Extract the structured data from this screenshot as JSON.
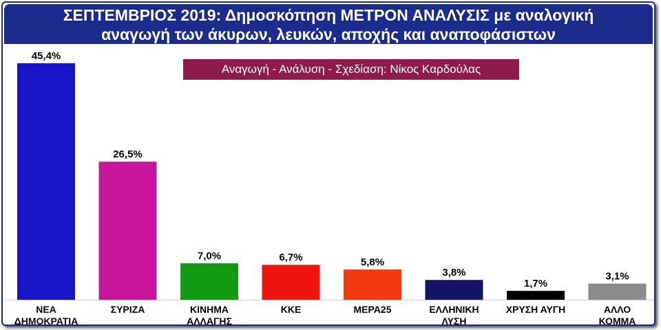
{
  "title_line1": "ΣΕΠΤΕΜΒΡΙΟΣ 2019: Δημοσκόπηση ΜΕΤΡΟΝ ΑΝΑΛΥΣΙΣ με αναλογική",
  "title_line2": "αναγωγή των άκυρων, λευκών, αποχής και αναποφάσιστων",
  "credit": "Αναγωγή - Ανάλυση - Σχεδίαση: Νίκος Καρδούλας",
  "chart_data": {
    "type": "bar",
    "categories": [
      [
        "ΝΕΑ",
        "ΔΗΜΟΚΡΑΤΙΑ"
      ],
      [
        "ΣΥΡΙΖΑ"
      ],
      [
        "ΚΙΝΗΜΑ",
        "ΑΛΛΑΓΗΣ"
      ],
      [
        "ΚΚΕ"
      ],
      [
        "ΜΕΡΑ25"
      ],
      [
        "ΕΛΛΗΝΙΚΗ",
        "ΛΥΣΗ"
      ],
      [
        "ΧΡΥΣΗ ΑΥΓΗ"
      ],
      [
        "ΑΛΛΟ",
        "ΚΟΜΜΑ"
      ]
    ],
    "values": [
      45.4,
      26.5,
      7.0,
      6.7,
      5.8,
      3.8,
      1.7,
      3.1
    ],
    "value_labels": [
      "45,4%",
      "26,5%",
      "7,0%",
      "6,7%",
      "5,8%",
      "3,8%",
      "1,7%",
      "3,1%"
    ],
    "colors": [
      "#1a14c8",
      "#c8149a",
      "#139a13",
      "#f0140f",
      "#f2380d",
      "#141466",
      "#000000",
      "#8a8a8a"
    ],
    "ylim": [
      0,
      45.4
    ],
    "grid": false,
    "legend": "none"
  }
}
